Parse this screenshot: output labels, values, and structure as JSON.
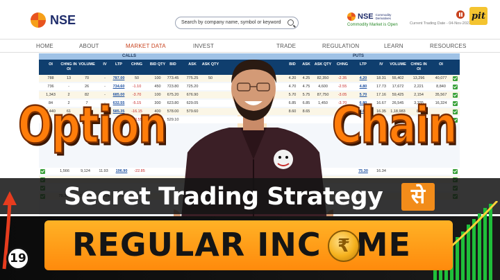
{
  "header": {
    "logo_text": "NSE",
    "search_placeholder": "Search by company name, symbol or keyword",
    "commodity_brand": "NSE",
    "commodity_sub": "Commodity Derivatives",
    "commodity_status": "Commodity Market is Open",
    "trading_date": "Current Trading Date - 04-Nov-2022",
    "channel_logo": "pit"
  },
  "nav": {
    "items": [
      "HOME",
      "ABOUT",
      "MARKET DATA",
      "INVEST",
      "TRADE",
      "REGULATION",
      "LEARN",
      "RESOURCES"
    ],
    "active": "MARKET DATA"
  },
  "option_chain": {
    "calls_label": "CALLS",
    "puts_label": "PUTS",
    "call_columns": [
      "OI",
      "CHNG IN OI",
      "VOLUME",
      "IV",
      "LTP",
      "CHNG",
      "BID QTY",
      "BID",
      "ASK",
      "ASK QTY"
    ],
    "put_columns": [
      "BID",
      "ASK",
      "ASK QTY",
      "CHNG",
      "LTP",
      "IV",
      "VOLUME",
      "CHNG IN OI",
      "OI"
    ],
    "call_rows": [
      [
        "788",
        "13",
        "70",
        "-",
        "787.00",
        "50",
        "100",
        "773.45",
        "775.25",
        "50"
      ],
      [
        "736",
        "-",
        "26",
        "-",
        "734.60",
        "-1.10",
        "450",
        "723.80",
        "725.20",
        ""
      ],
      [
        "1,343",
        "2",
        "82",
        "-",
        "685.00",
        "-3.70",
        "100",
        "675.20",
        "676.90",
        ""
      ],
      [
        "84",
        "2",
        "7",
        "-",
        "632.55",
        "-5.15",
        "300",
        "623.80",
        "629.05",
        ""
      ],
      [
        "2,440",
        "61",
        "",
        "",
        "585.35",
        "-16.15",
        "400",
        "578.00",
        "579.60",
        ""
      ],
      [
        "",
        "",
        "",
        "",
        "",
        "-20.55",
        "50",
        "529.10",
        "",
        ""
      ]
    ],
    "put_rows": [
      [
        "4.20",
        "4.25",
        "82,350",
        "-2.35",
        "4.20",
        "18.31",
        "55,402",
        "13,296",
        "40,077"
      ],
      [
        "4.70",
        "4.75",
        "4,600",
        "-2.55",
        "4.80",
        "17.73",
        "17,672",
        "2,221",
        "8,840"
      ],
      [
        "5.70",
        "5.75",
        "87,750",
        "-3.05",
        "5.70",
        "17.16",
        "59,425",
        "2,154",
        "35,567"
      ],
      [
        "6.85",
        "6.85",
        "1,450",
        "-3.70",
        "6.80",
        "16.67",
        "26,545",
        "3,335",
        "16,324"
      ],
      [
        "8.60",
        "8.65",
        "",
        "",
        "8.65",
        "16.35",
        "1,18,983",
        "82",
        ""
      ],
      [
        "",
        "",
        "",
        "",
        "",
        "",
        "",
        "",
        ""
      ]
    ],
    "low_rows_calls": [
      [
        "",
        "1,566",
        "9,124",
        "11.93",
        "196.90",
        "-22.85"
      ],
      [
        "",
        "",
        "",
        "",
        "",
        ""
      ],
      [
        "",
        "",
        "",
        "",
        "",
        ""
      ],
      [
        "",
        "79,386",
        "28,433",
        "13,814",
        "11.36",
        "97.80"
      ]
    ],
    "low_rows_puts": [
      [
        "75.30",
        "16.34",
        "",
        "",
        ""
      ],
      [
        "",
        "",
        "",
        "",
        ""
      ],
      [
        "",
        "",
        "",
        "",
        ""
      ],
      [
        "",
        "",
        "",
        "",
        ""
      ]
    ]
  },
  "overlay": {
    "word_left": "Option",
    "word_right": "Chain",
    "strip_text": "Secret Trading Strategy",
    "hindi_word": "से",
    "income_text": "REGULAR INC",
    "income_tail": "ME",
    "coin_symbol": "₹",
    "episode_number": "19"
  },
  "colors": {
    "accent_orange": "#ff7d0a",
    "nse_navy": "#1f2d6b",
    "table_header": "#0f3e6e",
    "band_orange": "#ff8a0c"
  }
}
